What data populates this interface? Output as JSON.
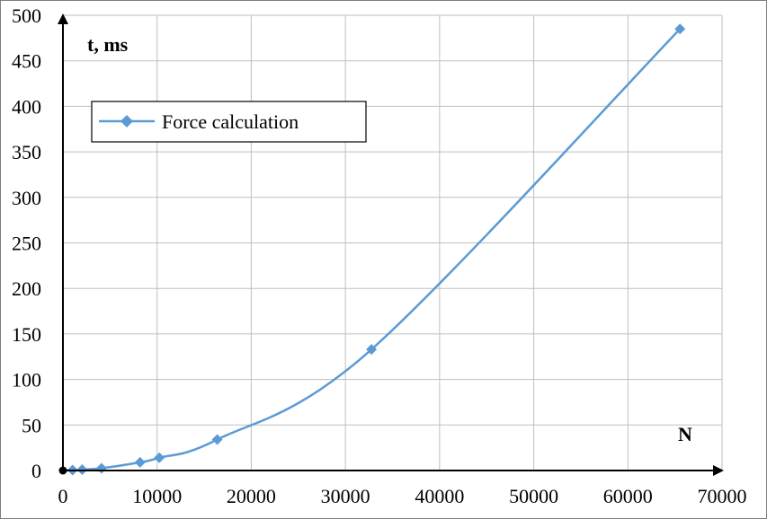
{
  "chart_data": {
    "type": "line",
    "title": "",
    "xlabel": "N",
    "ylabel": "t, ms",
    "xlim": [
      0,
      70000
    ],
    "ylim": [
      0,
      500
    ],
    "x_ticks": [
      0,
      10000,
      20000,
      30000,
      40000,
      50000,
      60000,
      70000
    ],
    "y_ticks": [
      0,
      50,
      100,
      150,
      200,
      250,
      300,
      350,
      400,
      450,
      500
    ],
    "x_tick_labels": [
      "0",
      "10000",
      "20000",
      "30000",
      "40000",
      "50000",
      "60000",
      "70000"
    ],
    "y_tick_labels": [
      "0",
      "50",
      "100",
      "150",
      "200",
      "250",
      "300",
      "350",
      "400",
      "450",
      "500"
    ],
    "grid": true,
    "smooth": true,
    "legend": {
      "position": "top-left",
      "entries": [
        "Force calculation"
      ]
    },
    "series": [
      {
        "name": "Force calculation",
        "color": "#5b9bd5",
        "marker": "diamond",
        "x": [
          1024,
          2048,
          4096,
          8192,
          10240,
          16384,
          32768,
          65536
        ],
        "y": [
          0.5,
          1,
          2.5,
          9,
          14,
          34,
          133,
          485
        ]
      }
    ],
    "origin_marker": {
      "x": 0,
      "y": 0,
      "shape": "dot",
      "color": "#000000"
    }
  }
}
